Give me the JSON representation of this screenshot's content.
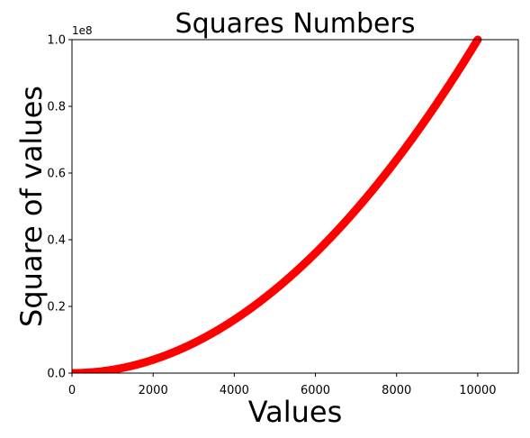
{
  "chart_data": {
    "type": "scatter",
    "title": "Squares Numbers",
    "xlabel": "Values",
    "ylabel": "Square of values",
    "x_range": [
      1,
      10000
    ],
    "y_formula": "x^2",
    "xlim": [
      0,
      11000
    ],
    "ylim": [
      0,
      100000000
    ],
    "x_ticks": [
      0,
      2000,
      4000,
      6000,
      8000,
      10000
    ],
    "x_tick_labels": [
      "0",
      "2000",
      "4000",
      "6000",
      "8000",
      "10000"
    ],
    "y_ticks": [
      0,
      20000000,
      40000000,
      60000000,
      80000000,
      100000000
    ],
    "y_tick_labels": [
      "0.0",
      "0.2",
      "0.4",
      "0.6",
      "0.8",
      "1.0"
    ],
    "y_offset_label": "1e8",
    "marker_color": "#ff0000",
    "grid": false,
    "legend": false
  }
}
